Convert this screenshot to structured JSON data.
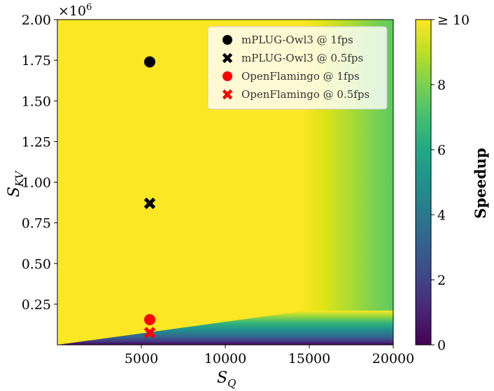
{
  "chart_data": {
    "type": "heatmap",
    "title": "",
    "xlabel": "S_Q",
    "ylabel": "S_KV",
    "xlabel_main": "S",
    "xlabel_sub": "Q",
    "ylabel_main": "S",
    "ylabel_sub": "KV",
    "xlim": [
      0,
      20000
    ],
    "ylim": [
      0,
      2000000
    ],
    "x_ticks": [
      5000,
      10000,
      15000,
      20000
    ],
    "x_tick_labels": [
      "5000",
      "10000",
      "15000",
      "20000"
    ],
    "y_ticks": [
      250000,
      500000,
      750000,
      1000000,
      1250000,
      1500000,
      1750000,
      2000000
    ],
    "y_tick_labels": [
      "0.25",
      "0.50",
      "0.75",
      "1.00",
      "1.25",
      "1.50",
      "1.75",
      "2.00"
    ],
    "y_scale_label": "×10",
    "y_scale_exponent": "6",
    "colorbar": {
      "label": "Speedup",
      "min": 0,
      "max": 10,
      "ticks": [
        0,
        2,
        4,
        6,
        8
      ],
      "tick_labels": [
        "0",
        "2",
        "4",
        "6",
        "8"
      ],
      "top_label": "≥ 10",
      "colormap": "viridis"
    },
    "points": [
      {
        "name": "mPLUG-Owl3 @ 1fps",
        "x": 5500,
        "y": 1740000,
        "marker": "circle",
        "color": "#000000"
      },
      {
        "name": "mPLUG-Owl3 @ 0.5fps",
        "x": 5500,
        "y": 870000,
        "marker": "x",
        "color": "#000000"
      },
      {
        "name": "OpenFlamingo @ 1fps",
        "x": 5500,
        "y": 155000,
        "marker": "circle",
        "color": "#ff0000"
      },
      {
        "name": "OpenFlamingo @ 0.5fps",
        "x": 5500,
        "y": 75000,
        "marker": "x",
        "color": "#ff0000"
      }
    ],
    "legend": {
      "position": "top-right",
      "entries": [
        "mPLUG-Owl3 @ 1fps",
        "mPLUG-Owl3 @ 0.5fps",
        "OpenFlamingo @ 1fps",
        "OpenFlamingo @ 0.5fps"
      ]
    }
  }
}
